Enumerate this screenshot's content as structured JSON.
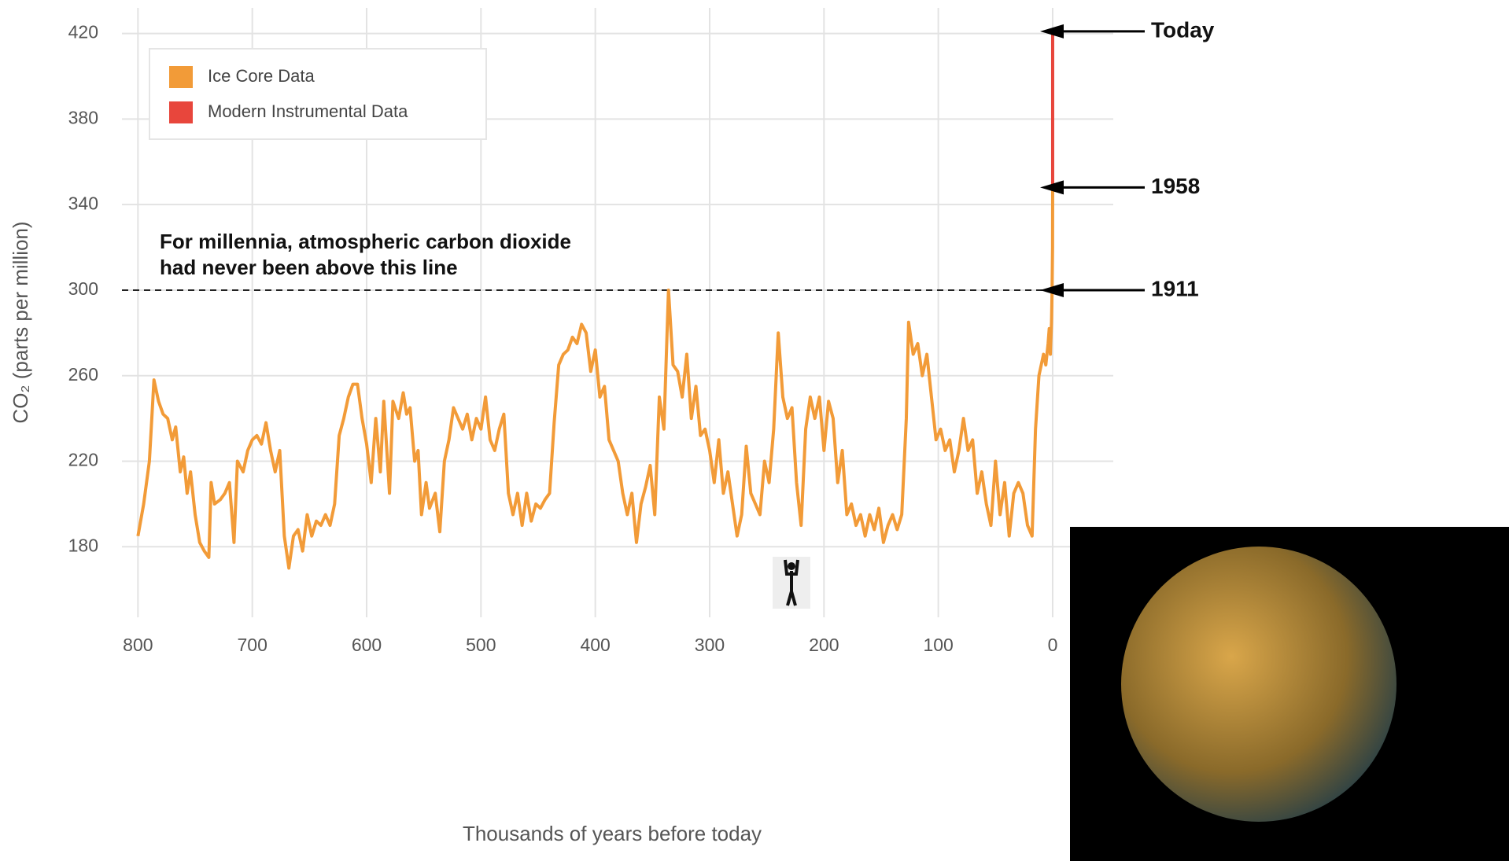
{
  "chart_data": {
    "type": "line",
    "ylabel": "CO₂ (parts per million)",
    "xlabel": "Thousands of years before today",
    "xlim": [
      814,
      -53
    ],
    "ylim": [
      147,
      432
    ],
    "xticks": [
      800,
      700,
      600,
      500,
      400,
      300,
      200,
      100,
      0
    ],
    "yticks": [
      180,
      220,
      260,
      300,
      340,
      380,
      420
    ],
    "grid": true,
    "legend": "top-left",
    "series": [
      {
        "name": "Ice Core Data",
        "color": "#f29b38",
        "x": [
          800,
          795,
          790,
          786,
          782,
          778,
          774,
          770,
          767,
          763,
          760,
          757,
          754,
          750,
          746,
          742,
          738,
          736,
          733,
          728,
          724,
          720,
          716,
          713,
          708,
          704,
          700,
          696,
          692,
          688,
          684,
          680,
          676,
          672,
          668,
          664,
          660,
          656,
          652,
          648,
          644,
          640,
          636,
          632,
          628,
          624,
          620,
          616,
          612,
          608,
          604,
          600,
          596,
          592,
          588,
          585,
          580,
          577,
          572,
          568,
          565,
          562,
          558,
          555,
          552,
          548,
          545,
          540,
          536,
          532,
          528,
          524,
          520,
          516,
          512,
          508,
          504,
          500,
          496,
          492,
          488,
          484,
          480,
          476,
          472,
          468,
          464,
          460,
          456,
          452,
          448,
          444,
          440,
          436,
          432,
          428,
          424,
          420,
          416,
          412,
          408,
          404,
          400,
          396,
          392,
          388,
          384,
          380,
          376,
          372,
          368,
          364,
          360,
          356,
          352,
          348,
          344,
          340,
          336,
          332,
          328,
          324,
          320,
          316,
          312,
          308,
          304,
          300,
          296,
          292,
          288,
          284,
          280,
          276,
          272,
          268,
          264,
          260,
          256,
          252,
          248,
          244,
          240,
          236,
          232,
          228,
          224,
          220,
          216,
          212,
          208,
          204,
          200,
          196,
          192,
          188,
          184,
          180,
          176,
          172,
          168,
          164,
          160,
          156,
          152,
          148,
          144,
          140,
          136,
          132,
          128,
          126,
          122,
          118,
          114,
          110,
          106,
          102,
          98,
          94,
          90,
          86,
          82,
          78,
          74,
          70,
          66,
          62,
          58,
          54,
          50,
          46,
          42,
          38,
          34,
          30,
          26,
          22,
          18,
          15,
          12,
          10,
          8,
          6,
          4,
          3,
          2,
          1,
          0.5,
          0.1,
          0
        ],
        "values": [
          185,
          200,
          220,
          258,
          248,
          242,
          240,
          230,
          236,
          215,
          222,
          205,
          215,
          195,
          182,
          178,
          175,
          210,
          200,
          202,
          205,
          210,
          182,
          220,
          215,
          225,
          230,
          232,
          228,
          238,
          225,
          215,
          225,
          185,
          170,
          185,
          188,
          178,
          195,
          185,
          192,
          190,
          195,
          190,
          200,
          232,
          240,
          250,
          256,
          256,
          240,
          228,
          210,
          240,
          215,
          248,
          205,
          248,
          240,
          252,
          242,
          245,
          220,
          225,
          195,
          210,
          198,
          205,
          187,
          220,
          230,
          245,
          240,
          235,
          242,
          230,
          240,
          235,
          250,
          230,
          225,
          235,
          242,
          205,
          195,
          205,
          190,
          205,
          192,
          200,
          198,
          202,
          205,
          238,
          265,
          270,
          272,
          278,
          275,
          284,
          280,
          262,
          272,
          250,
          255,
          230,
          225,
          220,
          205,
          195,
          205,
          182,
          200,
          208,
          218,
          195,
          250,
          235,
          300,
          265,
          262,
          250,
          270,
          240,
          255,
          232,
          235,
          225,
          210,
          230,
          205,
          215,
          200,
          185,
          195,
          227,
          205,
          200,
          195,
          220,
          210,
          235,
          280,
          250,
          240,
          245,
          210,
          190,
          235,
          250,
          240,
          250,
          225,
          248,
          240,
          210,
          225,
          195,
          200,
          190,
          195,
          185,
          195,
          188,
          198,
          182,
          190,
          195,
          188,
          195,
          240,
          285,
          270,
          275,
          260,
          270,
          250,
          230,
          235,
          225,
          230,
          215,
          225,
          240,
          225,
          230,
          205,
          215,
          200,
          190,
          220,
          195,
          210,
          185,
          205,
          210,
          205,
          190,
          185,
          235,
          260,
          265,
          270,
          265,
          275,
          282,
          270,
          285,
          300,
          320,
          347
        ]
      },
      {
        "name": "Modern Instrumental Data",
        "color": "#e8463c",
        "x": [
          0,
          0
        ],
        "values": [
          347,
          421
        ]
      }
    ],
    "threshold": 300,
    "threshold_text": [
      "For millennia, atmospheric carbon dioxide",
      "had never been above this line"
    ],
    "annotations": [
      {
        "label": "Today",
        "y": 421
      },
      {
        "label": "1958",
        "y": 348
      },
      {
        "label": "1911",
        "y": 300
      }
    ]
  }
}
